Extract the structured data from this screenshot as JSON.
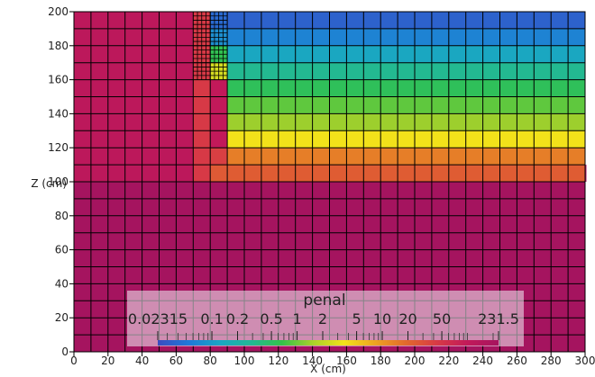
{
  "chart_data": {
    "type": "heatmap",
    "title": "",
    "xlabel": "X (cm)",
    "ylabel": "Z (cm)",
    "xlim": [
      0,
      300
    ],
    "ylim": [
      0,
      200
    ],
    "x_ticks": [
      "0",
      "20",
      "40",
      "60",
      "80",
      "100",
      "120",
      "140",
      "160",
      "180",
      "200",
      "220",
      "240",
      "260",
      "280",
      "300"
    ],
    "y_ticks": [
      "0",
      "20",
      "40",
      "60",
      "80",
      "100",
      "120",
      "140",
      "160",
      "180",
      "200"
    ],
    "grid": true,
    "mesh": {
      "base_cell_size_cm": 10,
      "refined_region": {
        "x": [
          70,
          90
        ],
        "z": [
          160,
          200
        ],
        "cell_size_cm": 2.5
      }
    },
    "regions": [
      {
        "x": [
          0,
          300
        ],
        "z": [
          0,
          100
        ],
        "value": 231.5
      },
      {
        "x": [
          0,
          70
        ],
        "z": [
          100,
          200
        ],
        "value": 120
      },
      {
        "x": [
          70,
          80
        ],
        "z": [
          100,
          200
        ],
        "value": 45
      },
      {
        "x": [
          80,
          90
        ],
        "z": [
          100,
          110
        ],
        "value": 25
      },
      {
        "x": [
          80,
          90
        ],
        "z": [
          110,
          120
        ],
        "value": 40
      },
      {
        "x": [
          80,
          90
        ],
        "z": [
          120,
          160
        ],
        "value": 100
      },
      {
        "x": [
          90,
          300
        ],
        "z": [
          100,
          110
        ],
        "value": 24
      },
      {
        "x": [
          90,
          300
        ],
        "z": [
          110,
          120
        ],
        "value": 14
      },
      {
        "x": [
          90,
          300
        ],
        "z": [
          120,
          130
        ],
        "value": 3.5
      },
      {
        "x": [
          90,
          300
        ],
        "z": [
          130,
          140
        ],
        "value": 1.4
      },
      {
        "x": [
          90,
          300
        ],
        "z": [
          140,
          150
        ],
        "value": 0.9
      },
      {
        "x": [
          90,
          300
        ],
        "z": [
          150,
          160
        ],
        "value": 0.55
      },
      {
        "x": [
          90,
          300
        ],
        "z": [
          160,
          170
        ],
        "value": 0.3
      },
      {
        "x": [
          90,
          300
        ],
        "z": [
          170,
          180
        ],
        "value": 0.13
      },
      {
        "x": [
          90,
          300
        ],
        "z": [
          180,
          190
        ],
        "value": 0.065
      },
      {
        "x": [
          90,
          300
        ],
        "z": [
          190,
          200
        ],
        "value": 0.035
      },
      {
        "x": [
          80,
          90
        ],
        "z": [
          160,
          170
        ],
        "value": 2.5
      },
      {
        "x": [
          80,
          90
        ],
        "z": [
          170,
          180
        ],
        "value": 0.6
      },
      {
        "x": [
          80,
          90
        ],
        "z": [
          180,
          190
        ],
        "value": 0.08
      },
      {
        "x": [
          80,
          90
        ],
        "z": [
          190,
          200
        ],
        "value": 0.04
      },
      {
        "x": [
          300,
          300
        ],
        "z": [
          100,
          110
        ],
        "value": 231.5
      }
    ],
    "colorbar": {
      "title": "penal",
      "scale": "log",
      "range": [
        0.02315,
        231.5
      ],
      "tick_labels": [
        "0.02315",
        "0.1",
        "0.2",
        "0.5",
        "1",
        "2",
        "5",
        "10",
        "20",
        "50",
        "231.5"
      ],
      "tick_values": [
        0.02315,
        0.1,
        0.2,
        0.5,
        1,
        2,
        5,
        10,
        20,
        50,
        231.5
      ],
      "colormap": [
        "#3b4cc0",
        "#1f78d8",
        "#1aa6c4",
        "#22b895",
        "#33c24a",
        "#a9d12a",
        "#f2e21a",
        "#eea322",
        "#e26a2c",
        "#d83a45",
        "#c2195a",
        "#a5145f"
      ],
      "placement": "bottom-center"
    }
  }
}
